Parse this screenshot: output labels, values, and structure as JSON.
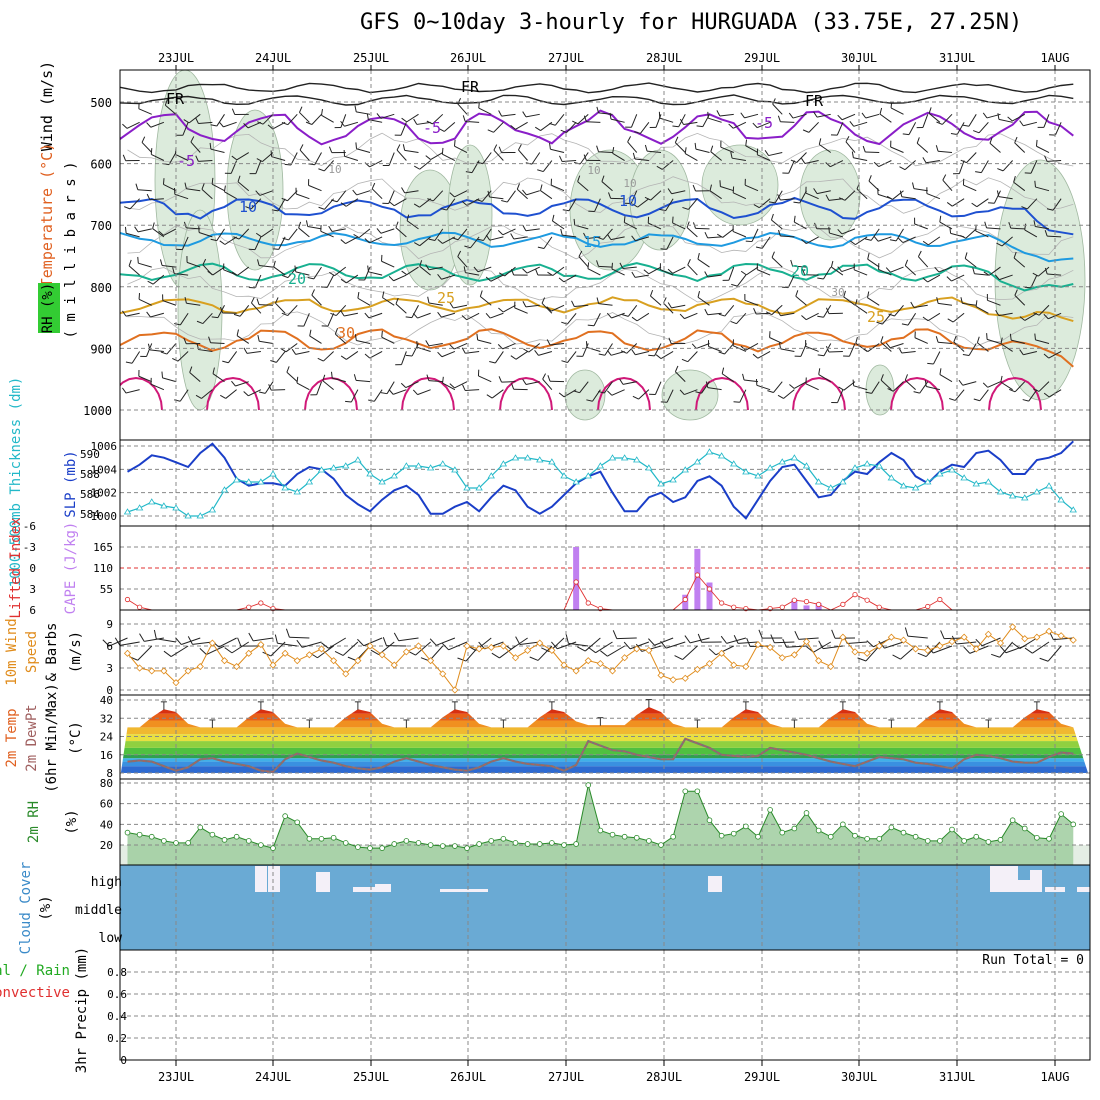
{
  "title": "GFS 0~10day 3-hourly for HURGUADA (33.75E, 27.25N)",
  "days": [
    "23JUL",
    "24JUL",
    "25JUL",
    "26JUL",
    "27JUL",
    "28JUL",
    "29JUL",
    "30JUL",
    "31JUL",
    "1AUG"
  ],
  "colors": {
    "grid": "#888888",
    "rh_fill": "#dcebdc",
    "cloud": "#6aaad4",
    "slp": "#1a3ec8",
    "thick": "#22b8c8",
    "cape": "#c080f0",
    "li": "#e03030",
    "wind": "#e08c1c",
    "rh2m": "#2a8a2a",
    "dewpt": "#b06060"
  },
  "panels": {
    "upper": {
      "label_wind": "Wind (m/s)",
      "label_temp": "Temperature (°C)",
      "label_rh": "RH (%)",
      "label_axis": "( m i l l i b a r s )",
      "yticks": [
        "500",
        "600",
        "700",
        "800",
        "900",
        "1000"
      ],
      "iso_labels": [
        "-5",
        "-5",
        "-5",
        "10",
        "10",
        "15",
        "20",
        "20",
        "25",
        "25",
        "30",
        "FR",
        "FR",
        "FR",
        "10",
        "10",
        "10",
        "30"
      ]
    },
    "thickness": {
      "label_thick": "1000-500mb Thickness (dm)",
      "label_slp": "SLP (mb)",
      "left_ticks": [
        "590",
        "588",
        "586",
        "584"
      ],
      "right_ticks": [
        "1006",
        "1004",
        "1002",
        "1000"
      ]
    },
    "cape": {
      "label_li": "Lifted Index",
      "label_cape": "CAPE (J/kg)",
      "left_ticks": [
        "-6",
        "-3",
        "0",
        "3",
        "6"
      ],
      "right_ticks": [
        "165",
        "110",
        "55"
      ]
    },
    "wind10": {
      "label1": "10m Wind",
      "label2": "Speed",
      "label3": "& Barbs",
      "unit": "(m/s)",
      "ticks": [
        "9",
        "6",
        "3",
        "0"
      ]
    },
    "temp2m": {
      "label1": "2m Temp",
      "label2": "2m DewPt",
      "label3": "(6hr Min/Max)",
      "unit": "(°C)",
      "ticks": [
        "40",
        "32",
        "24",
        "16",
        "8"
      ]
    },
    "rh2m": {
      "label": "2m RH",
      "unit": "(%)",
      "ticks": [
        "80",
        "60",
        "40",
        "20"
      ]
    },
    "cloud": {
      "label": "Cloud Cover",
      "unit": "(%)",
      "ticks": [
        "high",
        "middle",
        "low"
      ]
    },
    "precip": {
      "label1": "tal / Rain",
      "label2": "Convective",
      "label3": "3hr Precip (mm)",
      "ticks": [
        "0.8",
        "0.6",
        "0.4",
        "0.2",
        "0"
      ],
      "run_total": "Run Total = 0"
    }
  },
  "chart_data": {
    "type": "line",
    "x": [
      "22JUL 12Z",
      "22JUL 15Z",
      "22JUL 18Z",
      "22JUL 21Z",
      "23JUL 00Z",
      "23JUL 03Z",
      "23JUL 06Z",
      "23JUL 09Z",
      "23JUL 12Z",
      "23JUL 15Z",
      "23JUL 18Z",
      "23JUL 21Z",
      "24JUL 00Z",
      "24JUL 03Z",
      "24JUL 06Z",
      "24JUL 09Z",
      "24JUL 12Z",
      "24JUL 15Z",
      "24JUL 18Z",
      "24JUL 21Z",
      "25JUL 00Z",
      "25JUL 03Z",
      "25JUL 06Z",
      "25JUL 09Z",
      "25JUL 12Z",
      "25JUL 15Z",
      "25JUL 18Z",
      "25JUL 21Z",
      "26JUL 00Z",
      "26JUL 03Z",
      "26JUL 06Z",
      "26JUL 09Z",
      "26JUL 12Z",
      "26JUL 15Z",
      "26JUL 18Z",
      "26JUL 21Z",
      "27JUL 00Z",
      "27JUL 03Z",
      "27JUL 06Z",
      "27JUL 09Z",
      "27JUL 12Z",
      "27JUL 15Z",
      "27JUL 18Z",
      "27JUL 21Z",
      "28JUL 00Z",
      "28JUL 03Z",
      "28JUL 06Z",
      "28JUL 09Z",
      "28JUL 12Z",
      "28JUL 15Z",
      "28JUL 18Z",
      "28JUL 21Z",
      "29JUL 00Z",
      "29JUL 03Z",
      "29JUL 06Z",
      "29JUL 09Z",
      "29JUL 12Z",
      "29JUL 15Z",
      "29JUL 18Z",
      "29JUL 21Z",
      "30JUL 00Z",
      "30JUL 03Z",
      "30JUL 06Z",
      "30JUL 09Z",
      "30JUL 12Z",
      "30JUL 15Z",
      "30JUL 18Z",
      "30JUL 21Z",
      "31JUL 00Z",
      "31JUL 03Z",
      "31JUL 06Z",
      "31JUL 09Z",
      "31JUL 12Z",
      "31JUL 15Z",
      "31JUL 18Z",
      "31JUL 21Z",
      "1AUG 00Z",
      "1AUG 03Z",
      "1AUG 06Z"
    ],
    "series": [
      {
        "name": "SLP (mb)",
        "values": [
          1003.8,
          1004.4,
          1005.2,
          1005.0,
          1004.6,
          1004.2,
          1005.4,
          1006.2,
          1005.0,
          1003.2,
          1002.6,
          1002.8,
          1002.8,
          1002.6,
          1003.6,
          1004.2,
          1004.0,
          1003.2,
          1001.8,
          1001.0,
          1000.4,
          1001.4,
          1002.2,
          1002.6,
          1001.8,
          1000.2,
          1000.2,
          1000.8,
          1001.2,
          1000.4,
          1001.6,
          1002.6,
          1002.2,
          1000.8,
          1000.2,
          1000.8,
          1001.8,
          1002.8,
          1003.4,
          1003.8,
          1002.0,
          1000.4,
          1000.4,
          1001.6,
          1002.0,
          1001.2,
          1001.6,
          1003.0,
          1003.4,
          1002.6,
          1000.8,
          999.8,
          1001.4,
          1003.0,
          1004.2,
          1004.4,
          1003.0,
          1001.6,
          1001.8,
          1003.0,
          1003.8,
          1003.6,
          1004.6,
          1005.4,
          1004.8,
          1003.4,
          1002.8,
          1003.8,
          1004.4,
          1004.2,
          1005.4,
          1005.6,
          1004.8,
          1003.6,
          1003.6,
          1004.8,
          1005.0,
          1005.4,
          1006.4
        ]
      },
      {
        "name": "1000-500mb Thickness (dm)",
        "values": [
          584.2,
          584.6,
          585.2,
          584.8,
          584.6,
          583.8,
          583.8,
          584.4,
          586.4,
          587.4,
          587.2,
          587.2,
          588.0,
          586.6,
          586.2,
          587.2,
          588.4,
          588.6,
          588.8,
          589.4,
          588.0,
          587.2,
          587.8,
          588.8,
          588.8,
          588.6,
          589.0,
          588.4,
          586.6,
          586.6,
          587.8,
          589.0,
          589.6,
          589.6,
          589.4,
          589.2,
          587.8,
          587.2,
          587.8,
          588.8,
          589.6,
          589.6,
          589.4,
          588.6,
          587.0,
          587.4,
          588.4,
          589.2,
          590.2,
          589.8,
          589.0,
          588.2,
          587.8,
          588.6,
          589.2,
          589.6,
          588.8,
          587.2,
          586.6,
          587.2,
          588.6,
          589.0,
          588.8,
          587.6,
          586.8,
          586.6,
          587.2,
          588.0,
          588.4,
          587.6,
          587.0,
          587.2,
          586.2,
          585.8,
          585.6,
          586.2,
          586.8,
          585.4,
          584.4
        ]
      },
      {
        "name": "CAPE (J/kg)",
        "values": [
          0,
          0,
          0,
          0,
          0,
          0,
          0,
          0,
          0,
          0,
          0,
          0,
          0,
          0,
          0,
          0,
          0,
          0,
          0,
          0,
          0,
          0,
          0,
          0,
          0,
          0,
          0,
          0,
          0,
          0,
          0,
          0,
          0,
          0,
          0,
          0,
          0,
          165,
          0,
          0,
          0,
          0,
          0,
          0,
          0,
          0,
          40,
          160,
          72,
          0,
          0,
          0,
          0,
          0,
          0,
          28,
          12,
          18,
          0,
          0,
          0,
          0,
          0,
          0,
          0,
          0,
          0,
          0,
          0,
          0,
          0,
          0,
          0,
          0,
          0,
          0,
          0,
          0,
          0
        ]
      },
      {
        "name": "Lifted Index",
        "values": [
          4.5,
          5.6,
          6,
          6,
          6,
          6,
          6,
          6,
          6,
          6,
          5.6,
          5,
          5.8,
          6,
          6,
          6,
          6,
          6,
          6,
          6,
          6,
          6,
          6,
          6,
          6,
          6,
          6,
          6,
          6,
          6,
          6,
          6,
          6,
          6,
          6,
          6,
          6,
          2,
          5,
          5.8,
          6,
          6,
          6,
          6,
          6,
          6,
          4.5,
          1,
          3,
          5,
          5.6,
          5.8,
          6,
          5.8,
          5.6,
          4.6,
          4.8,
          5.2,
          6,
          5.2,
          3.8,
          4.6,
          5.6,
          6,
          6,
          6,
          5.5,
          4.5,
          6,
          6,
          6,
          6,
          6,
          6,
          6,
          6,
          6,
          6,
          6
        ]
      },
      {
        "name": "10m Wind Speed (m/s)",
        "values": [
          5,
          3.0,
          2.6,
          2.6,
          1.0,
          2.6,
          3.2,
          6.4,
          4.0,
          3.2,
          5.0,
          6.2,
          3.4,
          5.0,
          4.0,
          4.8,
          5.6,
          4.0,
          2.2,
          4.0,
          6.0,
          4.8,
          3.4,
          5.2,
          6.0,
          4.0,
          2.2,
          0.0,
          6.0,
          5.6,
          5.8,
          6.0,
          4.4,
          5.4,
          6.4,
          5.4,
          3.4,
          2.6,
          4.0,
          3.6,
          2.6,
          4.4,
          5.6,
          5.4,
          2.0,
          1.4,
          1.6,
          2.8,
          3.6,
          5.0,
          3.4,
          3.2,
          6.2,
          5.8,
          4.4,
          4.8,
          6.6,
          4.0,
          3.2,
          7.2,
          5.2,
          5.0,
          6.0,
          7.2,
          6.8,
          5.6,
          5.4,
          6.0,
          6.6,
          7.2,
          5.6,
          7.6,
          6.4,
          8.6,
          7.0,
          7.2,
          8.0,
          7.4,
          6.8
        ]
      },
      {
        "name": "2m DewPt (°C)",
        "values": [
          13,
          13.5,
          13,
          11,
          9,
          10.5,
          14,
          14.5,
          13,
          12,
          11,
          9,
          8.5,
          14,
          16.5,
          15,
          13.5,
          12.5,
          11,
          10,
          9.5,
          10.5,
          13,
          14.5,
          13,
          11.5,
          10.5,
          9.5,
          9,
          10.5,
          13,
          14.5,
          13,
          12,
          11.5,
          11,
          9,
          11.5,
          22,
          20,
          18,
          17.5,
          16,
          15,
          14,
          14,
          23,
          21,
          19,
          16,
          15.5,
          15,
          15.5,
          19,
          18,
          17,
          16,
          14.5,
          13,
          12,
          11,
          13,
          15,
          14.5,
          14,
          12.5,
          12,
          11,
          10,
          14,
          16,
          15.5,
          14.5,
          13,
          12.5,
          12.5,
          15,
          17,
          16.5
        ]
      },
      {
        "name": "2m RH (%)",
        "values": [
          32,
          30,
          28,
          24,
          22,
          22,
          37,
          30,
          25,
          28,
          24,
          20,
          17,
          48,
          42,
          26,
          26,
          27,
          22,
          18,
          17,
          17,
          21,
          24,
          22,
          20,
          19,
          19,
          17,
          21,
          24,
          26,
          22,
          21,
          21,
          22,
          20,
          21,
          78,
          34,
          30,
          28,
          27,
          24,
          20,
          28,
          72,
          72,
          44,
          29,
          31,
          38,
          28,
          54,
          32,
          36,
          51,
          34,
          28,
          40,
          29,
          26,
          26,
          37,
          32,
          28,
          24,
          24,
          35,
          24,
          28,
          23,
          25,
          44,
          36,
          27,
          26,
          50,
          40
        ]
      }
    ],
    "xlabel": "",
    "ylabel": ""
  }
}
